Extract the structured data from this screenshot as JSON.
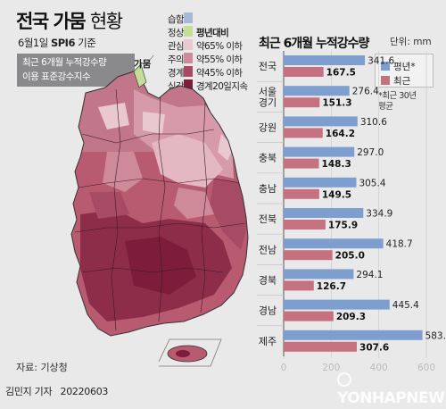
{
  "header": {
    "title_bold": "전국 가뭄",
    "title_thin": "현황",
    "subtitle_pre": "6월1일",
    "subtitle_bold": "SPI6",
    "subtitle_post": "기준",
    "note_line1": "최근 6개월 누적강수량",
    "note_line2": "이용 표준강수지수"
  },
  "legend": {
    "items": [
      {
        "label": "습함",
        "desc": "",
        "color": "#a7b9d9"
      },
      {
        "label": "정상",
        "desc": "평년대비",
        "color": "#c6dd97"
      },
      {
        "label": "관심",
        "desc": "약65% 이하",
        "color": "#e9c8cf"
      },
      {
        "label": "주의",
        "desc": "약55% 이하",
        "color": "#cf8a99"
      },
      {
        "label": "경계",
        "desc": "약45% 이하",
        "color": "#a74a63"
      },
      {
        "label": "심각",
        "desc": "경계20일지속",
        "color": "#7d1d3b"
      }
    ]
  },
  "map": {
    "label": "가뭄"
  },
  "chart": {
    "unit": "단위: mm",
    "legend": [
      {
        "name": "평년*",
        "color": "#7f9ed0"
      },
      {
        "name": "최근",
        "color": "#c6717f"
      }
    ],
    "note_line1": "*최근 30년",
    "note_line2": "평균"
  },
  "chart_data": {
    "type": "bar",
    "orientation": "horizontal",
    "title": "최근 6개월 누적강수량",
    "categories": [
      "전국",
      "서울\n경기",
      "강원",
      "충북",
      "충남",
      "전북",
      "전남",
      "경북",
      "경남",
      "제주"
    ],
    "series": [
      {
        "name": "평년*",
        "values": [
          341.6,
          276.4,
          310.6,
          297.0,
          305.4,
          334.9,
          418.7,
          294.1,
          445.4,
          583.4
        ]
      },
      {
        "name": "최근",
        "values": [
          167.5,
          151.3,
          164.2,
          148.3,
          149.5,
          175.9,
          205.0,
          126.7,
          209.3,
          307.6
        ]
      }
    ],
    "xlim": [
      0,
      600
    ],
    "ticks": [
      "0",
      "200",
      "400",
      "600"
    ],
    "value_labels": {
      "평년*": [
        "341.6",
        "276.4",
        "310.6",
        "297.0",
        "305.4",
        "334.9",
        "418.7",
        "294.1",
        "445.4",
        "583.4"
      ],
      "최근": [
        "167.5",
        "151.3",
        "164.2",
        "148.3",
        "149.5",
        "175.9",
        "205.0",
        "126.7",
        "209.3",
        "307.6"
      ]
    },
    "colors": {
      "평년*": "#7f9ed0",
      "최근": "#c6717f"
    }
  },
  "footer": {
    "source": "자료: 기상청",
    "author": "김민지 기자",
    "date": "20220603",
    "watermark": "YONHAPNEWS"
  }
}
